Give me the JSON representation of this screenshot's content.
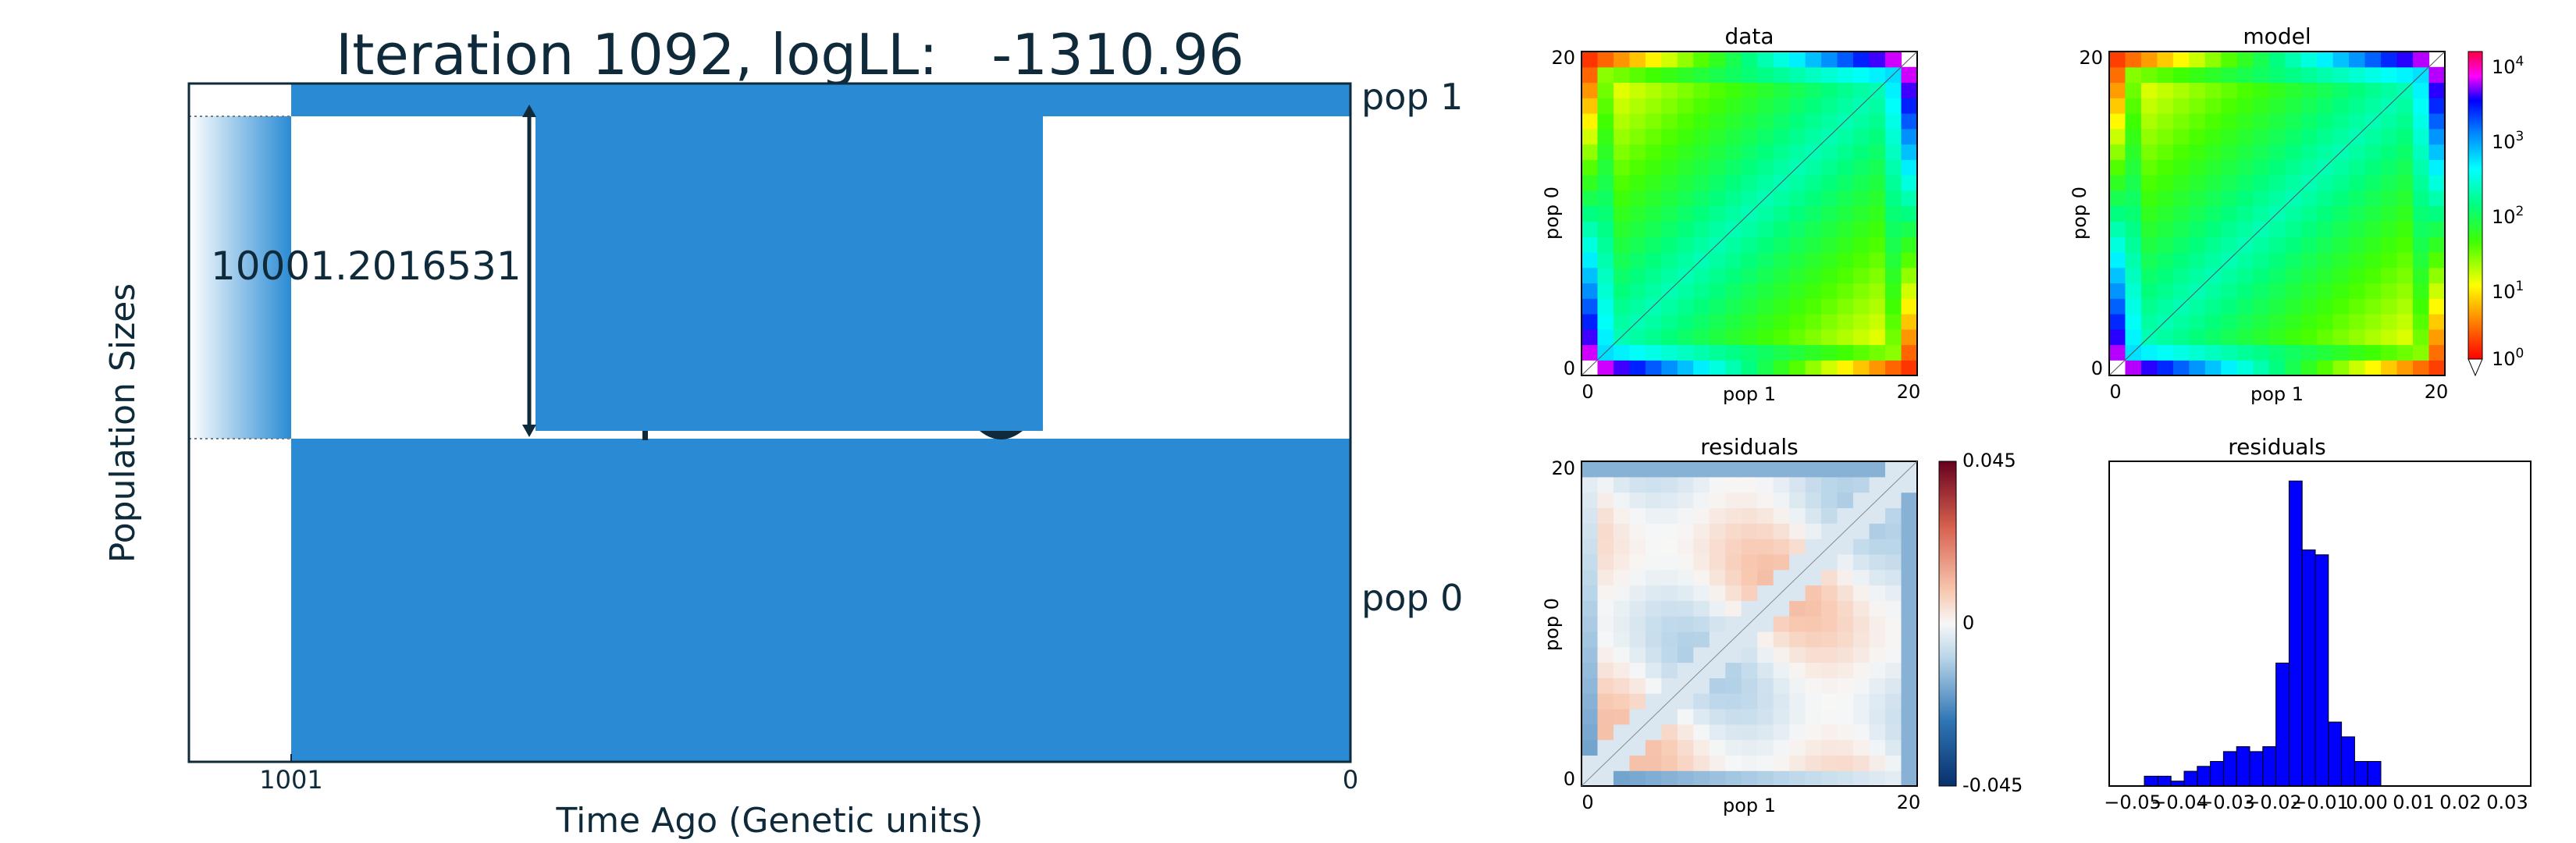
{
  "title": "Iteration 1092, logLL:   -1310.96",
  "demography": {
    "ylabel": "Population Sizes",
    "xlabel": "Time Ago (Genetic units)",
    "x_ticks": [
      "1001",
      "0"
    ],
    "pop_labels": [
      "pop 1",
      "pop 0"
    ],
    "size_annotation": "10001.2016531",
    "color": "#2a8bd4",
    "border_color": "#0f2a3a"
  },
  "sfs_labels": {
    "data_title": "data",
    "model_title": "model",
    "residual_title": "residuals",
    "hist_title": "residuals",
    "xlabel": "pop 1",
    "ylabel": "pop 0",
    "tick_low": "0",
    "tick_high": "20"
  },
  "colorbar_counts": {
    "ticks": [
      "10",
      "10",
      "10",
      "10",
      "10"
    ],
    "exponents": [
      "4",
      "3",
      "2",
      "1",
      "0"
    ]
  },
  "colorbar_residuals": {
    "ticks": [
      "0.045",
      "0",
      "-0.045"
    ]
  },
  "chart_data": [
    {
      "type": "heatmap",
      "title": "data",
      "xlabel": "pop 1",
      "ylabel": "pop 0",
      "x_range": [
        0,
        20
      ],
      "y_range": [
        0,
        20
      ],
      "scale": "log",
      "colorbar_range": [
        1,
        10000
      ]
    },
    {
      "type": "heatmap",
      "title": "model",
      "xlabel": "pop 1",
      "ylabel": "pop 0",
      "x_range": [
        0,
        20
      ],
      "y_range": [
        0,
        20
      ],
      "scale": "log",
      "colorbar_range": [
        1,
        10000
      ]
    },
    {
      "type": "heatmap",
      "title": "residuals",
      "xlabel": "pop 1",
      "ylabel": "pop 0",
      "x_range": [
        0,
        20
      ],
      "y_range": [
        0,
        20
      ],
      "colorbar_range": [
        -0.045,
        0.045
      ]
    },
    {
      "type": "bar",
      "title": "residuals",
      "x_ticks": [
        "−0.05",
        "−0.04",
        "−0.03",
        "−0.02",
        "−0.01",
        "0.00",
        "0.01",
        "0.02",
        "0.03"
      ],
      "xlim": [
        -0.05,
        0.03
      ],
      "bin_edges": [
        -0.0475,
        -0.0446,
        -0.0418,
        -0.039,
        -0.0362,
        -0.0334,
        -0.0306,
        -0.0278,
        -0.025,
        -0.0222,
        -0.0194,
        -0.0166,
        -0.0138,
        -0.011,
        -0.0082,
        -0.0054,
        -0.0026,
        0.0002,
        0.003,
        0.0058,
        0.0086,
        0.0114
      ],
      "values": [
        2,
        2,
        1,
        3,
        4,
        5,
        7,
        8,
        7,
        8,
        25,
        62,
        48,
        47,
        13,
        10,
        5,
        5,
        0,
        0,
        0
      ],
      "counts_note_free": true
    }
  ]
}
